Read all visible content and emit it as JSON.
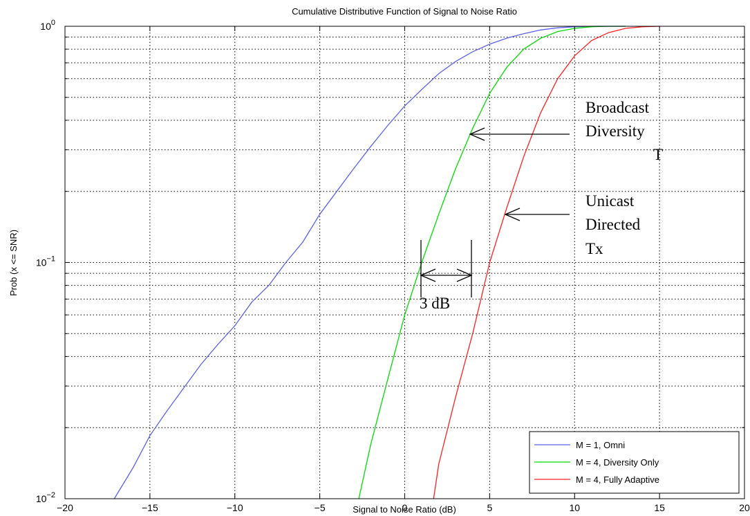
{
  "chart_data": {
    "type": "line",
    "title": "Cumulative Distributive Function of Signal to Noise Ratio",
    "xlabel": "Signal to Noise Ratio (dB)",
    "ylabel": "Prob (x <= SNR)",
    "xlim": [
      -20,
      20
    ],
    "ylim": [
      0.01,
      1
    ],
    "yscale": "log",
    "grid": true,
    "x_ticks": [
      "-20",
      "-15",
      "-10",
      "-5",
      "0",
      "5",
      "10",
      "15",
      "20"
    ],
    "y_ticks": [
      {
        "value": 0.01,
        "base": "10",
        "exp": "-2"
      },
      {
        "value": 0.1,
        "base": "10",
        "exp": "-1"
      },
      {
        "value": 1,
        "base": "10",
        "exp": "0"
      }
    ],
    "legend_position": "bottom-right",
    "series": [
      {
        "name": "M = 1, Omni",
        "color": "#5a62ee",
        "x": [
          -17.1,
          -16.0,
          -15.0,
          -14.0,
          -13.0,
          -12.0,
          -11.0,
          -10.0,
          -9.0,
          -8.0,
          -7.0,
          -6.0,
          -5.0,
          -4.0,
          -3.0,
          -2.0,
          -1.0,
          0.0,
          1.0,
          2.0,
          3.0,
          4.0,
          5.0,
          6.0,
          7.0,
          8.0,
          9.0,
          10.0,
          11.0,
          12.0,
          13.0
        ],
        "y": [
          0.01,
          0.0135,
          0.0185,
          0.0235,
          0.0295,
          0.037,
          0.045,
          0.054,
          0.068,
          0.08,
          0.1,
          0.122,
          0.16,
          0.2,
          0.25,
          0.31,
          0.38,
          0.46,
          0.54,
          0.63,
          0.71,
          0.78,
          0.84,
          0.89,
          0.93,
          0.965,
          0.985,
          0.995,
          1.0,
          1.0,
          1.0
        ]
      },
      {
        "name": "M = 4, Diversity Only",
        "color": "#00dd00",
        "x": [
          -2.7,
          -2.0,
          -1.0,
          0.0,
          1.0,
          2.0,
          3.0,
          4.0,
          5.0,
          6.0,
          7.0,
          8.0,
          9.0,
          10.0,
          11.0,
          12.0,
          13.0
        ],
        "y": [
          0.01,
          0.017,
          0.032,
          0.06,
          0.1,
          0.16,
          0.25,
          0.37,
          0.52,
          0.67,
          0.8,
          0.89,
          0.95,
          0.98,
          0.995,
          1.0,
          1.0
        ]
      },
      {
        "name": "M = 4, Fully Adaptive",
        "color": "#ff2020",
        "x": [
          1.7,
          2.0,
          3.0,
          4.0,
          5.0,
          6.0,
          7.0,
          8.0,
          9.0,
          10.0,
          11.0,
          12.0,
          13.0,
          14.0,
          15.0
        ],
        "y": [
          0.01,
          0.014,
          0.027,
          0.05,
          0.1,
          0.17,
          0.28,
          0.43,
          0.6,
          0.75,
          0.87,
          0.94,
          0.98,
          0.995,
          1.0
        ]
      }
    ],
    "annotations": [
      {
        "id": "broadcast",
        "lines": [
          "Broadcast",
          "Diversity",
          "T"
        ]
      },
      {
        "id": "unicast",
        "lines": [
          "Unicast",
          "Directed",
          "Tx"
        ]
      },
      {
        "id": "gap",
        "text": "3 dB"
      }
    ]
  }
}
